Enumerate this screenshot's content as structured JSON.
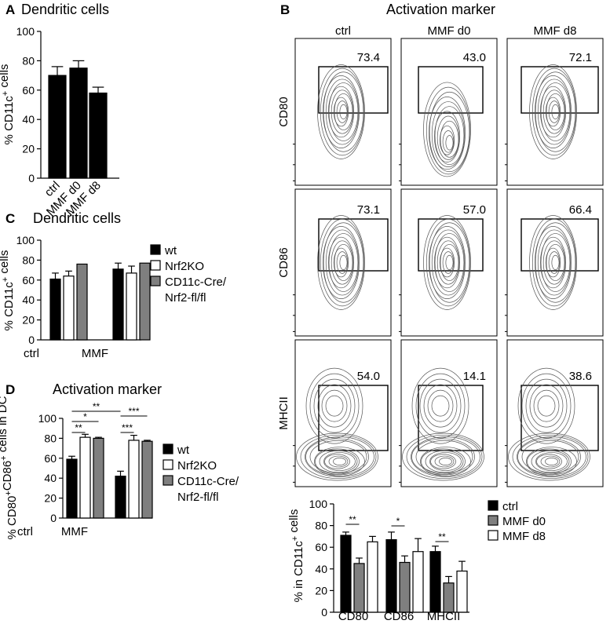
{
  "panels": {
    "A": {
      "letter": "A",
      "title": "Dendritic cells"
    },
    "B": {
      "letter": "B",
      "title": "Activation marker"
    },
    "C": {
      "letter": "C",
      "title": "Dendritic cells"
    },
    "D": {
      "letter": "D",
      "title": "Activation marker"
    }
  },
  "colors": {
    "black": "#000000",
    "white": "#ffffff",
    "gray": "#7f7f7f",
    "contour": "#555555"
  },
  "flow": {
    "columns": [
      "ctrl",
      "MMF d0",
      "MMF d8"
    ],
    "rows": [
      "CD80",
      "CD86",
      "MHCII"
    ],
    "percentages": [
      [
        "73.4",
        "43.0",
        "72.1"
      ],
      [
        "73.1",
        "57.0",
        "66.4"
      ],
      [
        "54.0",
        "14.1",
        "38.6"
      ]
    ]
  },
  "chart_data": [
    {
      "id": "A",
      "type": "bar",
      "title": "Dendritic cells",
      "ylabel": "% CD11c⁺ cells",
      "ylim": [
        0,
        100
      ],
      "yticks": [
        0,
        20,
        40,
        60,
        80,
        100
      ],
      "categories": [
        "ctrl",
        "MMF d0",
        "MMF d8"
      ],
      "series": [
        {
          "values": [
            70,
            75,
            58
          ],
          "errors": [
            6,
            5,
            4
          ],
          "fill": "#000000"
        }
      ]
    },
    {
      "id": "C",
      "type": "bar",
      "title": "Dendritic cells",
      "ylabel": "% CD11c⁺ cells",
      "ylim": [
        0,
        100
      ],
      "yticks": [
        0,
        20,
        40,
        60,
        80,
        100
      ],
      "categories": [
        "ctrl",
        "MMF"
      ],
      "series": [
        {
          "name": "wt",
          "values": [
            61,
            71
          ],
          "errors": [
            6,
            6
          ],
          "fill": "#000000"
        },
        {
          "name": "Nrf2KO",
          "values": [
            64,
            67
          ],
          "errors": [
            5,
            7
          ],
          "fill": "#ffffff"
        },
        {
          "name": "CD11c-Cre/ Nrf2-fl/fl",
          "values": [
            76,
            77
          ],
          "errors": [
            0,
            0
          ],
          "fill": "#7f7f7f"
        }
      ],
      "legend": [
        "wt",
        "Nrf2KO",
        "CD11c-Cre/",
        "Nrf2-fl/fl"
      ]
    },
    {
      "id": "D",
      "type": "bar",
      "title": "Activation marker",
      "ylabel": "% CD80⁺CD86⁺ cells in DC",
      "ylim": [
        0,
        100
      ],
      "yticks": [
        0,
        20,
        40,
        60,
        80,
        100
      ],
      "categories": [
        "ctrl",
        "MMF"
      ],
      "series": [
        {
          "name": "wt",
          "values": [
            59,
            42
          ],
          "errors": [
            3,
            5
          ],
          "fill": "#000000"
        },
        {
          "name": "Nrf2KO",
          "values": [
            81,
            78
          ],
          "errors": [
            3,
            5
          ],
          "fill": "#ffffff"
        },
        {
          "name": "CD11c-Cre/ Nrf2-fl/fl",
          "values": [
            80,
            77
          ],
          "errors": [
            1,
            1
          ],
          "fill": "#7f7f7f"
        }
      ],
      "legend": [
        "wt",
        "Nrf2KO",
        "CD11c-Cre/",
        "Nrf2-fl/fl"
      ],
      "significance": [
        "**",
        "*",
        "**",
        "***",
        "***"
      ]
    },
    {
      "id": "B-bar",
      "type": "bar",
      "ylabel": "% in CD11c⁺ cells",
      "ylim": [
        0,
        100
      ],
      "yticks": [
        0,
        20,
        40,
        60,
        80,
        100
      ],
      "categories": [
        "CD80",
        "CD86",
        "MHCII"
      ],
      "series": [
        {
          "name": "ctrl",
          "values": [
            71,
            67,
            56
          ],
          "errors": [
            3,
            7,
            5
          ],
          "fill": "#000000"
        },
        {
          "name": "MMF d0",
          "values": [
            45,
            46,
            27
          ],
          "errors": [
            5,
            6,
            6
          ],
          "fill": "#7f7f7f"
        },
        {
          "name": "MMF d8",
          "values": [
            65,
            56,
            38
          ],
          "errors": [
            5,
            12,
            9
          ],
          "fill": "#ffffff"
        }
      ],
      "legend": [
        "ctrl",
        "MMF d0",
        "MMF d8"
      ],
      "significance": [
        "**",
        "*",
        "**"
      ]
    }
  ]
}
